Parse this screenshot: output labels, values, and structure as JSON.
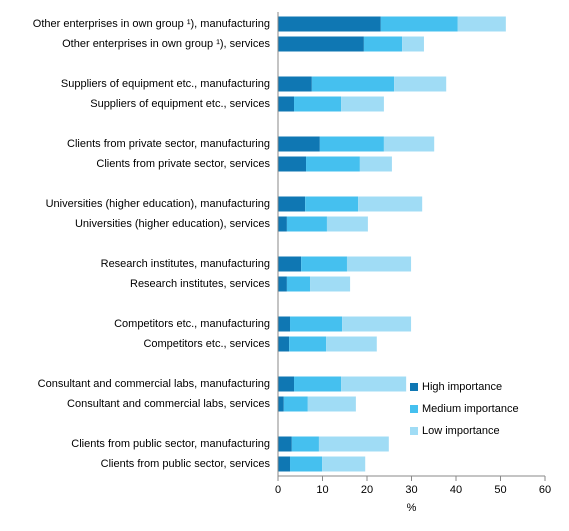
{
  "chart_data": {
    "type": "bar",
    "orientation": "horizontal",
    "stacked": true,
    "categories": [
      "Other enterprises in own group ¹), manufacturing",
      "Other enterprises in own group ¹), services",
      "Suppliers of equipment etc., manufacturing",
      "Suppliers of equipment etc., services",
      "Clients from private sector, manufacturing",
      "Clients from private sector, services",
      "Universities (higher education), manufacturing",
      "Universities (higher education), services",
      "Research institutes, manufacturing",
      "Research institutes, services",
      "Competitors etc., manufacturing",
      "Competitors etc., services",
      "Consultant and commercial labs, manufacturing",
      "Consultant and commercial labs, services",
      "Clients from public sector, manufacturing",
      "Clients from public sector, services"
    ],
    "series": [
      {
        "name": "High importance",
        "color": "#0f77b3",
        "values": [
          23.1,
          19.3,
          7.6,
          3.6,
          9.4,
          6.3,
          6.1,
          2.0,
          5.2,
          2.0,
          2.7,
          2.5,
          3.6,
          1.3,
          3.1,
          2.7
        ]
      },
      {
        "name": "Medium importance",
        "color": "#45c0ef",
        "values": [
          17.3,
          8.6,
          18.5,
          10.6,
          14.4,
          12.1,
          11.9,
          9.0,
          10.3,
          5.2,
          11.7,
          8.3,
          10.6,
          5.4,
          6.1,
          7.2
        ]
      },
      {
        "name": "Low importance",
        "color": "#a0dcf5",
        "values": [
          10.8,
          4.9,
          11.7,
          9.6,
          11.3,
          7.2,
          14.4,
          9.2,
          14.4,
          9.0,
          15.5,
          11.4,
          14.6,
          10.8,
          15.7,
          9.7
        ]
      }
    ],
    "xlabel": "%",
    "xlim": [
      0,
      60
    ],
    "xticks": [
      0,
      10,
      20,
      30,
      40,
      50,
      60
    ],
    "grid": false,
    "legend": "lower right"
  }
}
